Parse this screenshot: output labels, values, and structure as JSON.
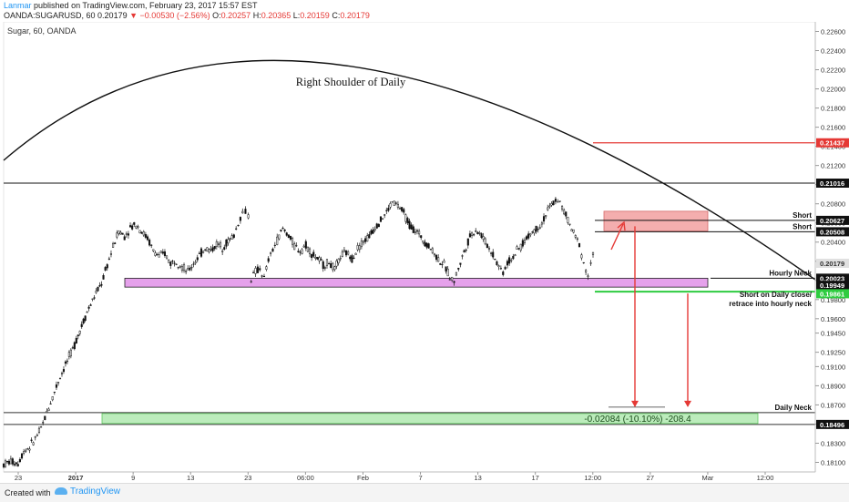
{
  "header": {
    "author": "Lanmar",
    "published": "published on TradingView.com, February 23, 2017 15:57 EST",
    "symbol": "OANDA:SUGARUSD, 60",
    "last": "0.20179",
    "change": "−0.00530 (−2.56%)",
    "o_label": "O:",
    "o": "0.20257",
    "h_label": "H:",
    "h": "0.20365",
    "l_label": "L:",
    "l": "0.20159",
    "c_label": "C:",
    "c": "0.20179"
  },
  "chart_data": {
    "type": "candlestick",
    "title": "Sugar, 60, OANDA",
    "ylim": [
      0.18,
      0.227
    ],
    "y_ticks": [
      "0.22600",
      "0.22400",
      "0.22200",
      "0.22000",
      "0.21800",
      "0.21600",
      "0.21400",
      "0.21200",
      "0.21000",
      "0.20800",
      "0.20600",
      "0.20400",
      "0.20200",
      "0.20000",
      "0.19800",
      "0.19600",
      "0.19450",
      "0.19250",
      "0.19100",
      "0.18900",
      "0.18700",
      "0.18500",
      "0.18300",
      "0.18100"
    ],
    "x_ticks": [
      "23",
      "2017",
      "9",
      "13",
      "23",
      "06:00",
      "Feb",
      "7",
      "13",
      "17",
      "12:00",
      "27",
      "Mar",
      "12:00"
    ],
    "price_labels": [
      {
        "text": "0.21437",
        "value": 0.21437,
        "color": "#e53935"
      },
      {
        "text": "0.21016",
        "value": 0.21016,
        "color": "#111111"
      },
      {
        "text": "0.20627",
        "value": 0.20627,
        "color": "#111111"
      },
      {
        "text": "0.20508",
        "value": 0.20508,
        "color": "#111111"
      },
      {
        "text": "0.20179",
        "value": 0.20179,
        "color": "#e0e0e0"
      },
      {
        "text": "0.20023",
        "value": 0.20023,
        "color": "#111111"
      },
      {
        "text": "0.19949",
        "value": 0.19949,
        "color": "#111111"
      },
      {
        "text": "0.19861",
        "value": 0.19861,
        "color": "#2ecc40"
      },
      {
        "text": "0.18496",
        "value": 0.18496,
        "color": "#111111"
      }
    ],
    "annotations": {
      "shoulder": "Right Shoulder of Daily",
      "short1": "Short",
      "short2": "Short",
      "hourly_neck": "Hourly Neck",
      "short_daily_1": "Short on Daily close/",
      "short_daily_2": "retrace into hourly neck",
      "daily_neck": "Daily Neck",
      "measure": "-0.02084 (-10.10%) -208.4"
    },
    "levels": {
      "red_line": 0.21437,
      "black_top": 0.21016,
      "short_upper": 0.20627,
      "short_lower": 0.20508,
      "hourly_neck_top": 0.20023,
      "hourly_neck_bottom": 0.19949,
      "green_line": 0.19861,
      "daily_neck_top": 0.1861,
      "daily_neck_bottom": 0.18496
    },
    "price_path": [
      [
        0,
        0.1808
      ],
      [
        5,
        0.1811
      ],
      [
        10,
        0.1809
      ],
      [
        14,
        0.1822
      ],
      [
        18,
        0.1826
      ],
      [
        22,
        0.1835
      ],
      [
        26,
        0.1845
      ],
      [
        30,
        0.1862
      ],
      [
        34,
        0.1878
      ],
      [
        38,
        0.1895
      ],
      [
        43,
        0.1912
      ],
      [
        48,
        0.1928
      ],
      [
        53,
        0.1948
      ],
      [
        58,
        0.1967
      ],
      [
        63,
        0.1983
      ],
      [
        68,
        0.1997
      ],
      [
        72,
        0.2016
      ],
      [
        76,
        0.2035
      ],
      [
        80,
        0.2052
      ],
      [
        84,
        0.2046
      ],
      [
        88,
        0.2055
      ],
      [
        92,
        0.2059
      ],
      [
        96,
        0.2051
      ],
      [
        100,
        0.2044
      ],
      [
        104,
        0.2031
      ],
      [
        108,
        0.2025
      ],
      [
        112,
        0.2028
      ],
      [
        116,
        0.2018
      ],
      [
        120,
        0.2021
      ],
      [
        124,
        0.2014
      ],
      [
        128,
        0.2009
      ],
      [
        132,
        0.2018
      ],
      [
        136,
        0.2026
      ],
      [
        140,
        0.2034
      ],
      [
        144,
        0.2031
      ],
      [
        148,
        0.2038
      ],
      [
        152,
        0.2035
      ],
      [
        156,
        0.2041
      ],
      [
        160,
        0.2047
      ],
      [
        163,
        0.206
      ],
      [
        166,
        0.2071
      ],
      [
        168,
        0.2072
      ],
      [
        170,
        0.2068
      ],
      [
        172,
        0.2002
      ],
      [
        175,
        0.2009
      ],
      [
        178,
        0.2012
      ],
      [
        181,
        0.2002
      ],
      [
        184,
        0.2021
      ],
      [
        187,
        0.2032
      ],
      [
        190,
        0.2042
      ],
      [
        194,
        0.2054
      ],
      [
        198,
        0.2047
      ],
      [
        202,
        0.2036
      ],
      [
        206,
        0.2031
      ],
      [
        210,
        0.2037
      ],
      [
        214,
        0.2028
      ],
      [
        218,
        0.2023
      ],
      [
        222,
        0.2016
      ],
      [
        226,
        0.2019
      ],
      [
        230,
        0.2011
      ],
      [
        234,
        0.2025
      ],
      [
        238,
        0.2029
      ],
      [
        242,
        0.2023
      ],
      [
        246,
        0.2034
      ],
      [
        250,
        0.2041
      ],
      [
        254,
        0.2046
      ],
      [
        258,
        0.2056
      ],
      [
        262,
        0.2063
      ],
      [
        266,
        0.2071
      ],
      [
        270,
        0.2082
      ],
      [
        274,
        0.2078
      ],
      [
        278,
        0.207
      ],
      [
        282,
        0.2058
      ],
      [
        286,
        0.2052
      ],
      [
        290,
        0.2046
      ],
      [
        294,
        0.2038
      ],
      [
        298,
        0.2031
      ],
      [
        302,
        0.2022
      ],
      [
        306,
        0.2016
      ],
      [
        310,
        0.2004
      ],
      [
        313,
        0.1999
      ],
      [
        316,
        0.2013
      ],
      [
        320,
        0.203
      ],
      [
        324,
        0.2046
      ],
      [
        328,
        0.2053
      ],
      [
        332,
        0.2047
      ],
      [
        336,
        0.2037
      ],
      [
        340,
        0.2027
      ],
      [
        344,
        0.2015
      ],
      [
        347,
        0.2009
      ],
      [
        350,
        0.2018
      ],
      [
        354,
        0.2025
      ],
      [
        358,
        0.2033
      ],
      [
        362,
        0.2041
      ],
      [
        366,
        0.2049
      ],
      [
        370,
        0.2054
      ],
      [
        374,
        0.206
      ],
      [
        378,
        0.2073
      ],
      [
        382,
        0.2081
      ],
      [
        385,
        0.2085
      ],
      [
        388,
        0.2076
      ],
      [
        392,
        0.2063
      ],
      [
        396,
        0.2049
      ],
      [
        400,
        0.2038
      ],
      [
        403,
        0.2018
      ],
      [
        406,
        0.2005
      ],
      [
        408,
        0.2016
      ],
      [
        411,
        0.2036
      ]
    ]
  }
}
